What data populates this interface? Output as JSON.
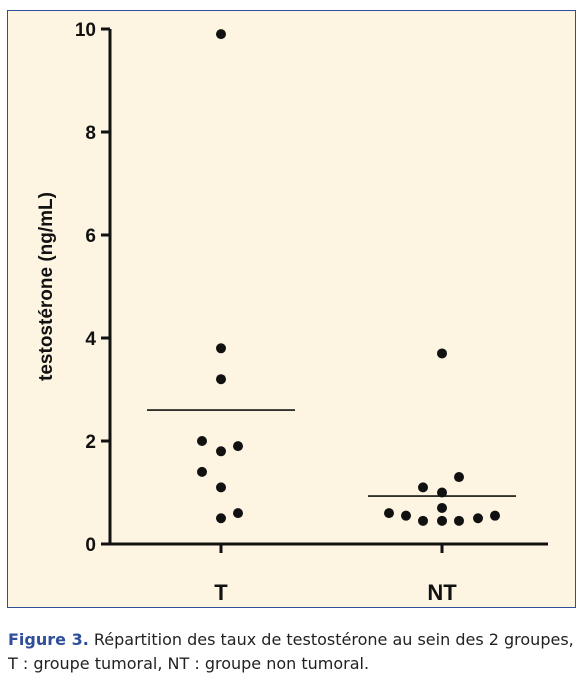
{
  "chart_data": {
    "type": "scatter",
    "ylabel": "testostérone (ng/mL)",
    "xlabel": "",
    "ylim": [
      0,
      10
    ],
    "yticks": [
      0,
      2,
      4,
      6,
      8,
      10
    ],
    "grid": false,
    "categories": [
      "T",
      "NT"
    ],
    "series": [
      {
        "category": "T",
        "mean": 2.6,
        "points": [
          9.9,
          3.8,
          3.2,
          2.0,
          1.8,
          1.9,
          1.4,
          1.1,
          0.5,
          0.6
        ]
      },
      {
        "category": "NT",
        "mean": 0.93,
        "points": [
          3.7,
          1.3,
          1.1,
          1.0,
          0.7,
          0.6,
          0.55,
          0.45,
          0.45,
          0.45,
          0.5,
          0.55
        ]
      }
    ]
  },
  "caption": {
    "figure_label": "Figure 3.",
    "line1": " Répartition des taux de testostérone au sein des 2 groupes,",
    "line2": "T : groupe tumoral, NT : groupe non tumoral."
  },
  "colors": {
    "panel_background": "#fdf5e2",
    "panel_border": "#2f4f9a",
    "figure_label": "#2f4f9a",
    "marks": "#111111"
  }
}
